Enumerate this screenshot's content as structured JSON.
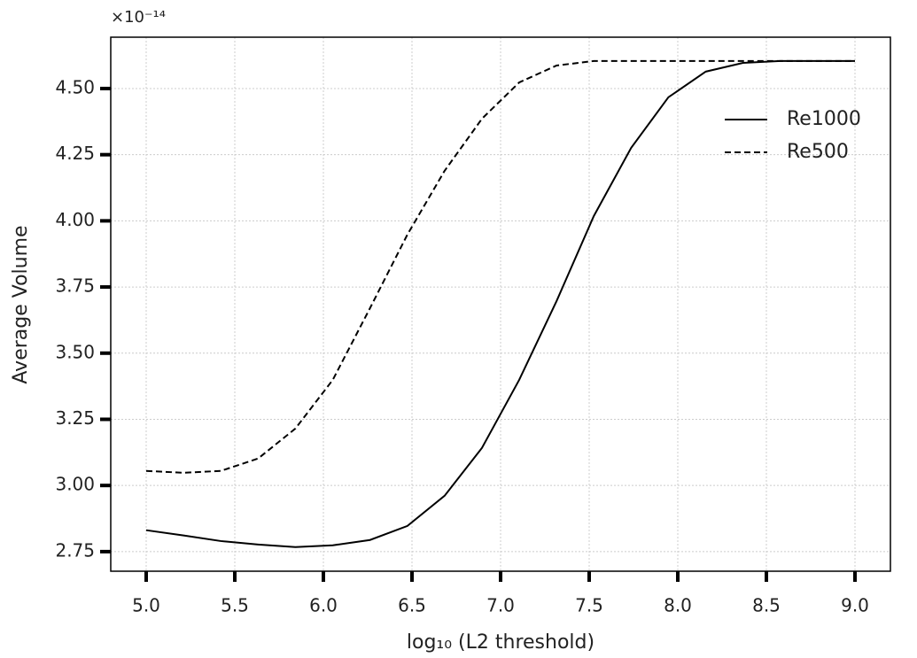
{
  "chart_data": {
    "type": "line",
    "x_label": "log₁₀ (L2 threshold)",
    "y_label": "Average Volume",
    "y_offset_label": "×10⁻¹⁴",
    "x": [
      5.0,
      5.211,
      5.421,
      5.632,
      5.842,
      6.053,
      6.263,
      6.474,
      6.684,
      6.895,
      7.105,
      7.316,
      7.526,
      7.737,
      7.947,
      8.158,
      8.368,
      8.579,
      8.789,
      9.0
    ],
    "series": [
      {
        "name": "Re1000",
        "color": "#000000",
        "dash": "solid",
        "values": [
          2.831,
          2.811,
          2.79,
          2.777,
          2.767,
          2.774,
          2.794,
          2.847,
          2.961,
          3.142,
          3.399,
          3.697,
          4.018,
          4.276,
          4.467,
          4.564,
          4.597,
          4.604,
          4.604,
          4.604
        ]
      },
      {
        "name": "Re500",
        "color": "#000000",
        "dash": "dashed",
        "values": [
          3.055,
          3.048,
          3.055,
          3.102,
          3.215,
          3.399,
          3.67,
          3.948,
          4.189,
          4.386,
          4.523,
          4.587,
          4.604,
          4.604,
          4.604,
          4.604,
          4.604,
          4.604,
          4.604,
          4.604
        ]
      }
    ],
    "xlim": [
      4.8,
      9.2
    ],
    "ylim": [
      2.676,
      4.694
    ],
    "xticks": [
      {
        "value": 5,
        "label": "5.0"
      },
      {
        "value": 5.5,
        "label": "5.5"
      },
      {
        "value": 6,
        "label": "6.0"
      },
      {
        "value": 6.5,
        "label": "6.5"
      },
      {
        "value": 7,
        "label": "7.0"
      },
      {
        "value": 7.5,
        "label": "7.5"
      },
      {
        "value": 8,
        "label": "8.0"
      },
      {
        "value": 8.5,
        "label": "8.5"
      },
      {
        "value": 9,
        "label": "9.0"
      }
    ],
    "yticks": [
      {
        "value": 2.75,
        "label": "2.75"
      },
      {
        "value": 3,
        "label": "3.00"
      },
      {
        "value": 3.25,
        "label": "3.25"
      },
      {
        "value": 3.5,
        "label": "3.50"
      },
      {
        "value": 3.75,
        "label": "3.75"
      },
      {
        "value": 4,
        "label": "4.00"
      },
      {
        "value": 4.25,
        "label": "4.25"
      },
      {
        "value": 4.5,
        "label": "4.50"
      }
    ],
    "grid": true,
    "legend": "upper right"
  }
}
